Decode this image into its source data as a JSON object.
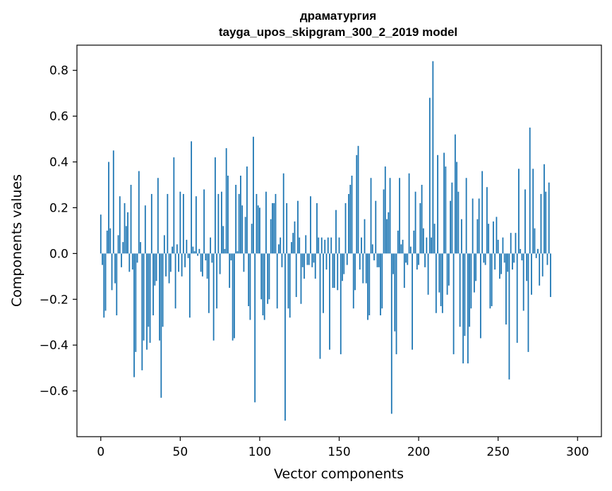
{
  "chart_data": {
    "type": "bar",
    "title": "драматургия",
    "subtitle": "tayga_upos_skipgram_300_2_2019 model",
    "xlabel": "Vector components",
    "ylabel": "Components values",
    "xlim": [
      -15,
      315
    ],
    "ylim": [
      -0.8,
      0.91
    ],
    "xticks": [
      0,
      50,
      100,
      150,
      200,
      250,
      300
    ],
    "xtick_labels": [
      "0",
      "50",
      "100",
      "150",
      "200",
      "250",
      "300"
    ],
    "yticks": [
      -0.6,
      -0.4,
      -0.2,
      0.0,
      0.2,
      0.4,
      0.6,
      0.8
    ],
    "ytick_labels": [
      "−0.6",
      "−0.4",
      "−0.2",
      "0.0",
      "0.2",
      "0.4",
      "0.6",
      "0.8"
    ],
    "grid": false,
    "bar_color": "#1f77b4",
    "values": [
      0.17,
      -0.05,
      -0.28,
      -0.25,
      0.1,
      0.4,
      0.11,
      -0.16,
      0.45,
      -0.13,
      -0.27,
      0.08,
      0.25,
      -0.06,
      0.05,
      0.22,
      0.12,
      0.18,
      -0.08,
      0.3,
      -0.07,
      -0.54,
      -0.43,
      -0.04,
      0.36,
      0.05,
      -0.51,
      -0.38,
      0.21,
      -0.42,
      -0.32,
      -0.39,
      0.26,
      -0.27,
      -0.14,
      -0.12,
      0.33,
      -0.38,
      -0.63,
      -0.32,
      0.08,
      -0.1,
      0.26,
      -0.13,
      -0.08,
      0.03,
      0.42,
      -0.24,
      0.04,
      -0.08,
      0.27,
      -0.1,
      0.26,
      -0.06,
      0.06,
      -0.02,
      -0.28,
      0.49,
      0.03,
      0.01,
      0.25,
      -0.01,
      0.02,
      -0.08,
      -0.1,
      0.28,
      -0.03,
      -0.11,
      -0.26,
      0.07,
      -0.04,
      -0.38,
      0.42,
      -0.24,
      0.26,
      -0.09,
      0.27,
      0.12,
      0.02,
      0.46,
      0.34,
      -0.15,
      -0.03,
      -0.38,
      -0.37,
      0.3,
      0.01,
      0.26,
      0.34,
      0.21,
      -0.08,
      0.16,
      0.38,
      -0.23,
      -0.29,
      0.13,
      0.51,
      -0.65,
      0.26,
      0.21,
      0.2,
      -0.2,
      -0.27,
      -0.29,
      0.27,
      -0.22,
      -0.2,
      0.15,
      0.22,
      0.22,
      0.26,
      -0.24,
      0.04,
      0.07,
      -0.06,
      0.35,
      -0.73,
      0.22,
      -0.24,
      -0.28,
      0.05,
      0.09,
      0.14,
      -0.19,
      0.23,
      0.07,
      -0.22,
      -0.06,
      -0.11,
      0.08,
      -0.05,
      -0.05,
      0.25,
      -0.06,
      -0.04,
      -0.11,
      0.22,
      0.07,
      -0.46,
      0.07,
      -0.26,
      0.06,
      -0.07,
      0.07,
      -0.42,
      0.07,
      -0.15,
      -0.15,
      0.19,
      -0.16,
      0.07,
      -0.44,
      -0.12,
      -0.09,
      0.22,
      -0.05,
      0.26,
      0.3,
      0.34,
      -0.24,
      -0.16,
      0.43,
      0.47,
      -0.07,
      0.07,
      -0.13,
      0.15,
      -0.13,
      -0.29,
      -0.27,
      0.33,
      0.04,
      -0.03,
      0.23,
      -0.06,
      -0.06,
      -0.27,
      -0.24,
      0.28,
      0.38,
      0.15,
      0.18,
      0.33,
      -0.7,
      -0.09,
      -0.34,
      -0.44,
      0.1,
      0.33,
      0.04,
      0.06,
      -0.15,
      -0.04,
      -0.05,
      0.35,
      0.03,
      -0.42,
      0.1,
      0.27,
      -0.07,
      -0.05,
      0.22,
      0.3,
      0.11,
      -0.06,
      0.07,
      -0.18,
      0.68,
      0.07,
      0.84,
      0.13,
      -0.26,
      0.43,
      -0.17,
      -0.23,
      -0.26,
      0.44,
      0.38,
      -0.18,
      -0.14,
      0.23,
      0.31,
      -0.44,
      0.52,
      0.4,
      0.27,
      -0.32,
      0.15,
      -0.48,
      -0.36,
      0.33,
      -0.48,
      -0.32,
      -0.24,
      0.24,
      -0.17,
      -0.12,
      0.15,
      0.24,
      -0.37,
      0.36,
      -0.04,
      -0.05,
      0.29,
      0.13,
      -0.24,
      -0.23,
      0.14,
      -0.07,
      0.16,
      0.06,
      -0.11,
      -0.09,
      0.07,
      -0.04,
      -0.31,
      -0.08,
      -0.55,
      0.09,
      -0.07,
      -0.04,
      0.09,
      -0.39,
      0.37,
      0.02,
      -0.03,
      -0.25,
      0.28,
      -0.12,
      -0.43,
      0.55,
      -0.18,
      0.37,
      0.11,
      -0.02,
      0.02,
      -0.14,
      0.26,
      -0.1,
      0.39,
      0.27,
      -0.05,
      0.31,
      -0.19
    ]
  }
}
